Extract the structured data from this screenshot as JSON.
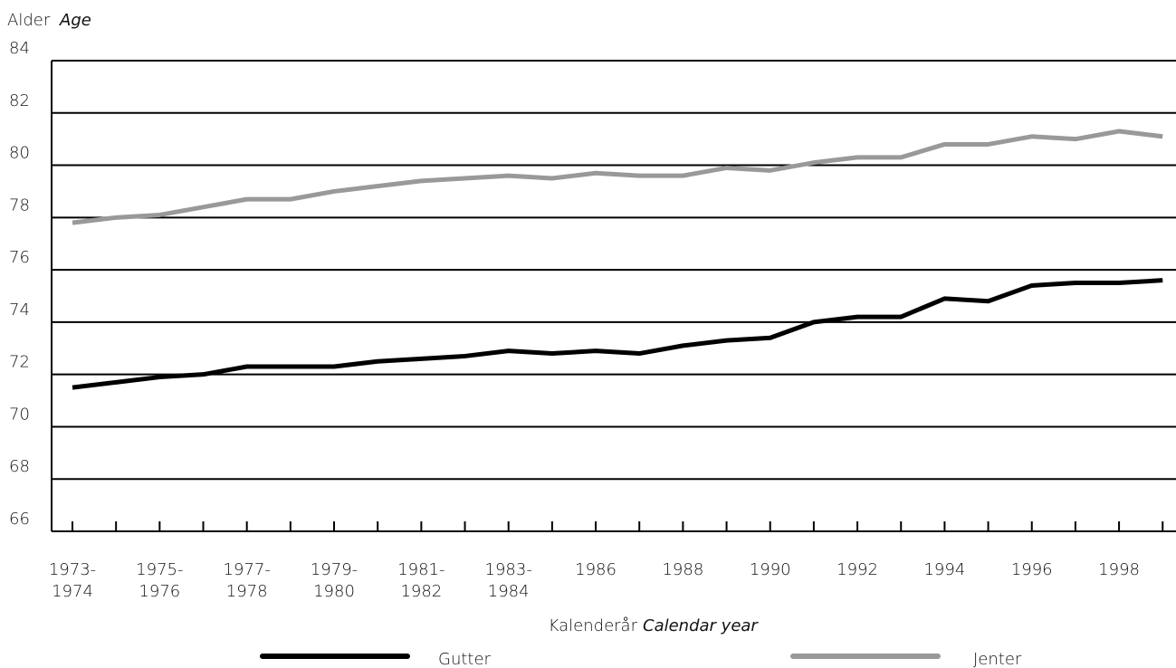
{
  "chart_data": {
    "type": "line",
    "y_label": "Alder",
    "y_label_en": "Age",
    "x_label": "Kalenderår",
    "x_label_en": "Calendar year",
    "categories": [
      "1973-1974",
      null,
      "1975-1976",
      null,
      "1977-1978",
      null,
      "1979-1980",
      null,
      "1981-1982",
      null,
      "1983-1984",
      null,
      "1986",
      null,
      "1988",
      null,
      "1990",
      null,
      "1992",
      null,
      "1994",
      null,
      "1996",
      null,
      "1998",
      null
    ],
    "series": [
      {
        "name": "Gutter",
        "color": "#000000",
        "values": [
          71.5,
          71.7,
          71.9,
          72.0,
          72.3,
          72.3,
          72.3,
          72.5,
          72.6,
          72.7,
          72.9,
          72.8,
          72.9,
          72.8,
          73.1,
          73.3,
          73.4,
          74.0,
          74.2,
          74.2,
          74.9,
          74.8,
          75.4,
          75.5,
          75.5,
          75.6
        ]
      },
      {
        "name": "Jenter",
        "color": "#999999",
        "values": [
          77.8,
          78.0,
          78.1,
          78.4,
          78.7,
          78.7,
          79.0,
          79.2,
          79.4,
          79.5,
          79.6,
          79.5,
          79.7,
          79.6,
          79.6,
          79.9,
          79.8,
          80.1,
          80.3,
          80.3,
          80.8,
          80.8,
          81.1,
          81.0,
          81.3,
          81.1
        ]
      }
    ],
    "ylim": [
      66,
      84
    ],
    "yticks": [
      66,
      68,
      70,
      72,
      74,
      76,
      78,
      80,
      82,
      84
    ],
    "grid": true
  }
}
